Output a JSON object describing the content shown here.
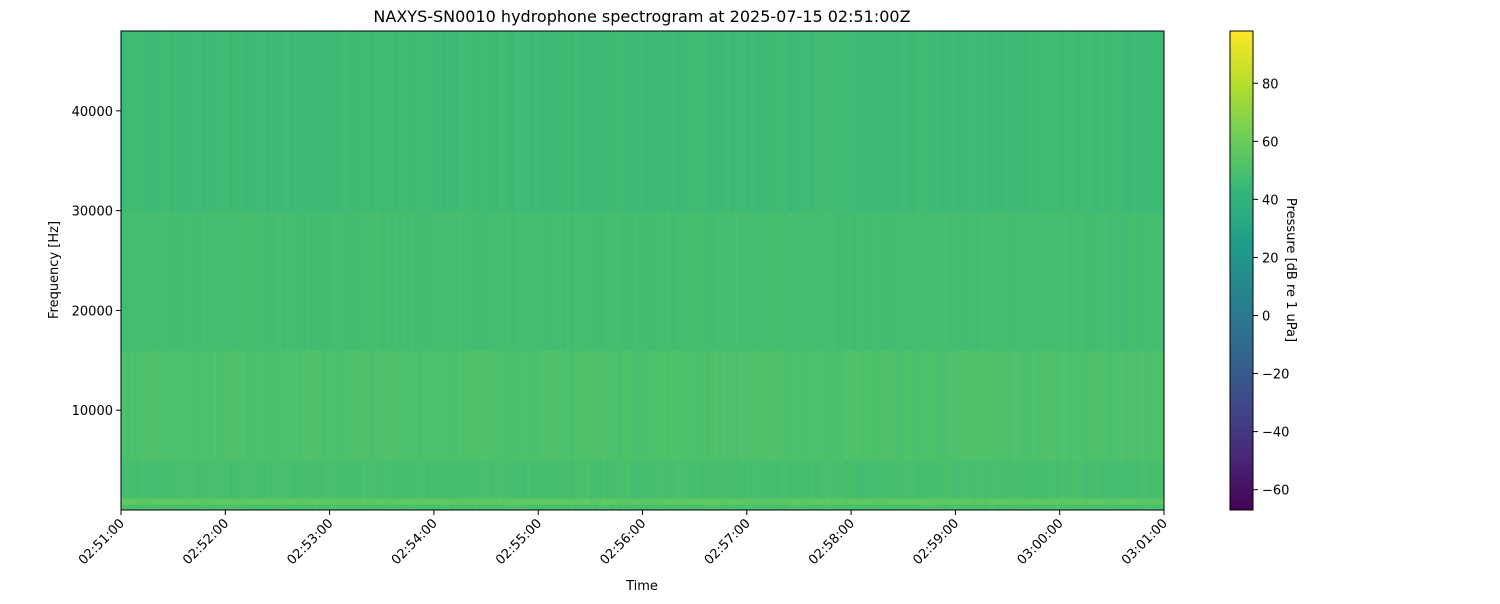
{
  "chart_data": {
    "type": "heatmap",
    "title": "NAXYS-SN0010 hydrophone spectrogram at 2025-07-15 02:51:00Z",
    "xlabel": "Time",
    "ylabel": "Frequency [Hz]",
    "x_tick_labels": [
      "02:51:00",
      "02:52:00",
      "02:53:00",
      "02:54:00",
      "02:55:00",
      "02:56:00",
      "02:57:00",
      "02:58:00",
      "02:59:00",
      "03:00:00",
      "03:01:00"
    ],
    "xlim": [
      "02:51:00",
      "03:01:00"
    ],
    "y_ticks": [
      10000,
      20000,
      30000,
      40000
    ],
    "y_tick_labels": [
      "10000",
      "20000",
      "30000",
      "40000"
    ],
    "ylim": [
      0,
      48000
    ],
    "colormap": "viridis",
    "colorbar": {
      "label": "Pressure [dB re 1 uPa]",
      "range": [
        -67,
        98
      ],
      "ticks": [
        -60,
        -40,
        -20,
        0,
        20,
        40,
        60,
        80
      ],
      "tick_labels": [
        "−60",
        "−40",
        "−20",
        "0",
        "20",
        "40",
        "60",
        "80"
      ]
    },
    "approx_levels_db": [
      {
        "freq_hz": [
          0,
          600
        ],
        "level_db": 50
      },
      {
        "freq_hz": [
          600,
          1200
        ],
        "level_db": 56
      },
      {
        "freq_hz": [
          1200,
          5000
        ],
        "level_db": 49
      },
      {
        "freq_hz": [
          5000,
          16000
        ],
        "level_db": 51
      },
      {
        "freq_hz": [
          16000,
          30000
        ],
        "level_db": 48
      },
      {
        "freq_hz": [
          30000,
          48000
        ],
        "level_db": 46
      }
    ],
    "grid": false
  }
}
